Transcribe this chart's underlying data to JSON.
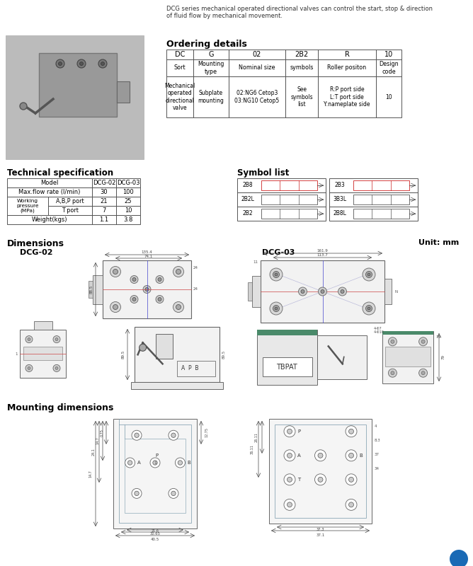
{
  "bg_color": "#ffffff",
  "title_text": "DCG series mechanical operated directional valves can control the start, stop & direction\nof fluid flow by mechanical movement.",
  "ordering_title": "Ordering details",
  "ordering_headers": [
    "DC",
    "G",
    "02",
    "2B2",
    "R",
    "10"
  ],
  "ordering_row1": [
    "Sort",
    "Mounting\ntype",
    "Nominal size",
    "symbols",
    "Roller positon",
    "Design\ncode"
  ],
  "ordering_row2": [
    "Mechanical\noperated\ndirectional\nvalve",
    "Subplate\nmounting",
    "02:NG6 Cetop3\n03:NG10 Cetop5",
    "See\nsymbols\nlist",
    "R:P port side\nL:T port side\nY:nameplate side",
    "10"
  ],
  "tech_title": "Technical specification",
  "symbol_title": "Symbol list",
  "symbol_rows": [
    [
      "2B8",
      "2B3"
    ],
    [
      "2B2L",
      "3B3L"
    ],
    [
      "2B2",
      "2B8L"
    ]
  ],
  "dim_title": "Dimensions",
  "unit_text": "Unit: mm",
  "dcg02_label": "DCG-02",
  "dcg03_label": "DCG-03",
  "mounting_title": "Mounting dimensions",
  "footer_color": "#1a6ab5",
  "line_color": "#666666",
  "dim_color": "#555555",
  "body_fill": "#f0f0f0",
  "photo_fill": "#cccccc"
}
